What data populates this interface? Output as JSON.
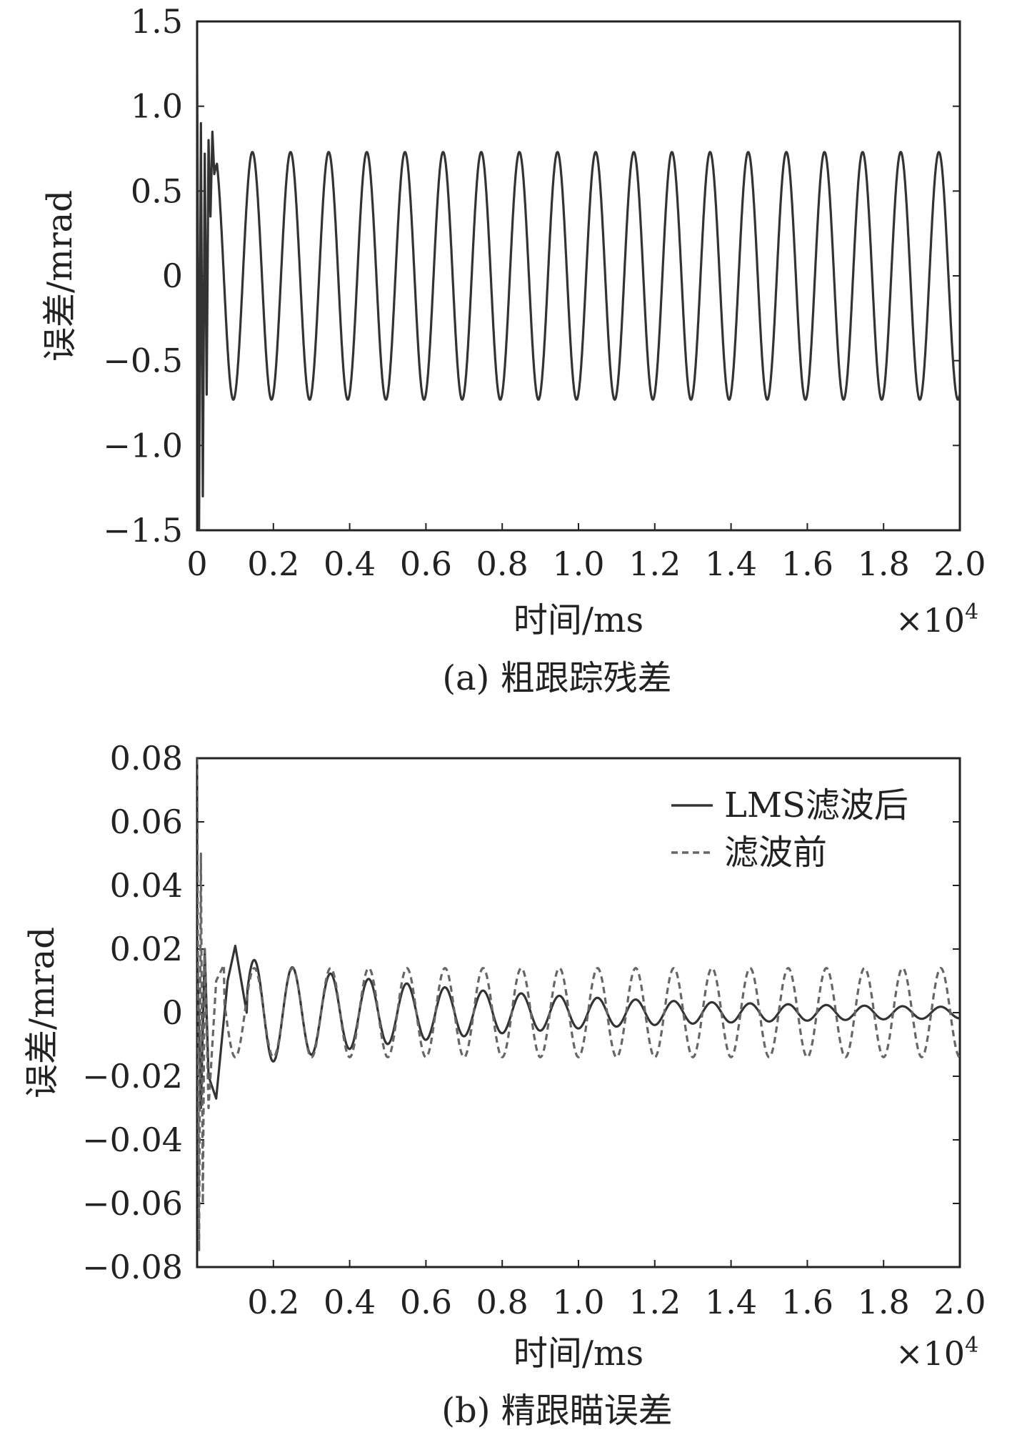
{
  "chart_data": [
    {
      "type": "line",
      "caption": "(a) 粗跟踪残差",
      "xlabel": "时间/ms",
      "ylabel": "误差/mrad",
      "x_multiplier": "×10",
      "x_multiplier_exp": "4",
      "xlim": [
        0,
        2.0
      ],
      "ylim": [
        -1.5,
        1.5
      ],
      "xticks": [
        "0",
        "0.2",
        "0.4",
        "0.6",
        "0.8",
        "1.0",
        "1.2",
        "1.4",
        "1.6",
        "1.8",
        "2.0"
      ],
      "yticks": [
        "1.5",
        "1.0",
        "0.5",
        "0",
        "−0.5",
        "−1.0",
        "−1.5"
      ],
      "series": [
        {
          "style": "solid",
          "color": "#333333",
          "amplitude": 0.73,
          "period": 0.1,
          "phase_peak_x": 0.145,
          "transient": [
            [
              0.0,
              1.27
            ],
            [
              0.005,
              -1.5
            ],
            [
              0.01,
              0.9
            ],
            [
              0.015,
              -1.3
            ],
            [
              0.02,
              0.72
            ],
            [
              0.025,
              -0.7
            ],
            [
              0.03,
              0.8
            ],
            [
              0.035,
              0.35
            ],
            [
              0.04,
              0.85
            ],
            [
              0.045,
              0.6
            ],
            [
              0.05,
              0.65
            ]
          ]
        }
      ]
    },
    {
      "type": "line",
      "caption": "(b) 精跟瞄误差",
      "xlabel": "时间/ms",
      "ylabel": "误差/mrad",
      "x_multiplier": "×10",
      "x_multiplier_exp": "4",
      "xlim": [
        0,
        2.0
      ],
      "ylim": [
        -0.08,
        0.08
      ],
      "xticks": [
        "0.2",
        "0.4",
        "0.6",
        "0.8",
        "1.0",
        "1.2",
        "1.4",
        "1.6",
        "1.8",
        "2.0"
      ],
      "yticks": [
        "0.08",
        "0.06",
        "0.04",
        "0.02",
        "0",
        "−0.02",
        "−0.04",
        "−0.06",
        "−0.08"
      ],
      "legend_position": "top-right",
      "series": [
        {
          "name": "LMS滤波后",
          "style": "solid",
          "color": "#333333",
          "amplitude_start": 0.016,
          "amplitude_end": 0.001,
          "period": 0.1,
          "transient": [
            [
              0.0,
              0.02
            ],
            [
              0.01,
              -0.03
            ],
            [
              0.02,
              0.02
            ],
            [
              0.03,
              -0.02
            ],
            [
              0.05,
              -0.027
            ],
            [
              0.08,
              0.01
            ],
            [
              0.1,
              0.021
            ],
            [
              0.13,
              0.0
            ]
          ]
        },
        {
          "name": "滤波前",
          "style": "dashed",
          "color": "#666666",
          "amplitude": 0.014,
          "period": 0.1,
          "transient": [
            [
              0.0,
              0.08
            ],
            [
              0.005,
              -0.075
            ],
            [
              0.01,
              0.05
            ],
            [
              0.015,
              -0.06
            ],
            [
              0.02,
              0.02
            ],
            [
              0.03,
              -0.03
            ],
            [
              0.05,
              0.01
            ],
            [
              0.07,
              0.015
            ]
          ]
        }
      ]
    }
  ]
}
